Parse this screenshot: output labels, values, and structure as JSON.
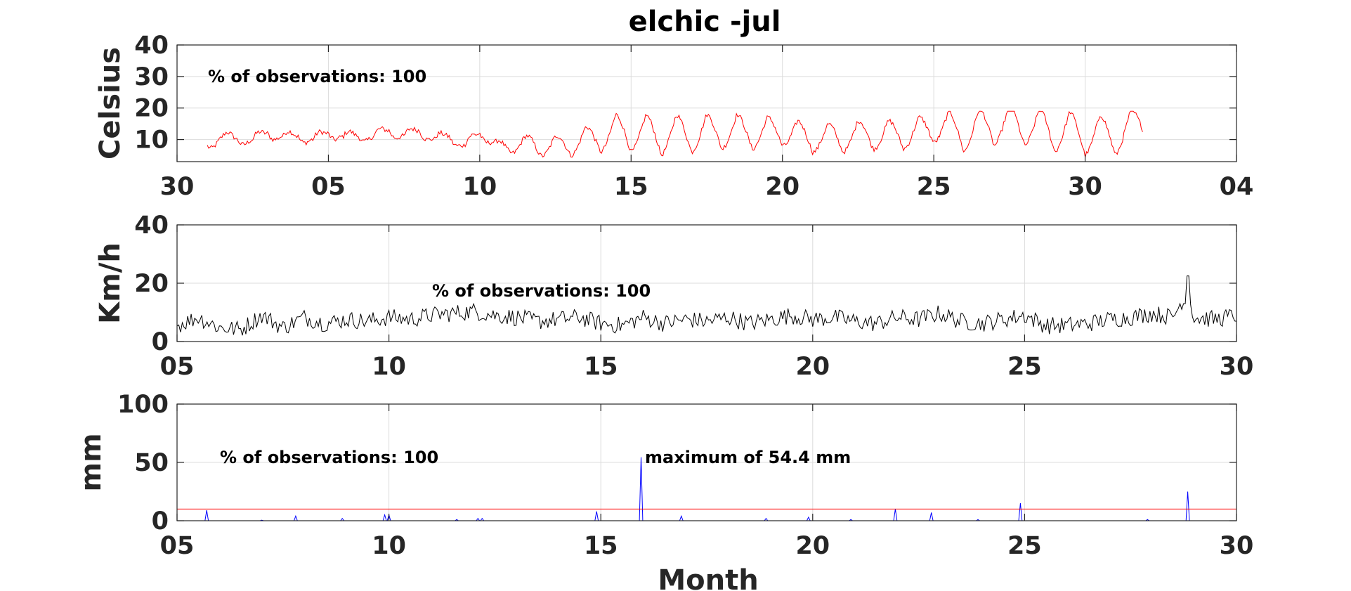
{
  "chart_data": [
    {
      "type": "line",
      "title": "elchic -jul",
      "ylabel": "Celsius",
      "xlabel": "",
      "annotation": "% of observations: 100",
      "ylim": [
        3,
        40
      ],
      "yticks": [
        "10",
        "20",
        "30",
        "40"
      ],
      "ytick_values": [
        10,
        20,
        30,
        40
      ],
      "xlim": [
        0,
        35
      ],
      "xticks": [
        "30",
        "05",
        "10",
        "15",
        "20",
        "25",
        "30",
        "04"
      ],
      "xtick_values": [
        0,
        5,
        10,
        15,
        20,
        25,
        30,
        35
      ],
      "grid": true,
      "series": [
        {
          "color": "#ff0000",
          "x_start": 1.0,
          "x_end": 31.9,
          "points": 700,
          "baseline": 10,
          "daily_amplitude": 5,
          "peak_hour_fraction": 0.6,
          "min": 4,
          "max": 19,
          "x": [
            1.0,
            1.5,
            2.0,
            2.5,
            3.0,
            3.5,
            4.0,
            4.5,
            5.0,
            5.5,
            6.0,
            6.5,
            7.0,
            7.5,
            8.0,
            8.5,
            9.0,
            9.5,
            10.0,
            10.5,
            11.0,
            11.5,
            12.0,
            12.5,
            13.0,
            13.5,
            14.0,
            14.5,
            15.0,
            15.5,
            16.0,
            16.5,
            17.0,
            17.5,
            18.0,
            18.5,
            19.0,
            19.5,
            20.0,
            20.5,
            21.0,
            21.5,
            22.0,
            22.5,
            23.0,
            23.5,
            24.0,
            24.5,
            25.0,
            25.5,
            26.0,
            26.5,
            27.0,
            27.5,
            28.0,
            28.5,
            29.0,
            29.5,
            30.0,
            30.5,
            31.0,
            31.5,
            31.9
          ],
          "y": [
            10,
            9,
            12,
            8,
            14,
            9,
            13,
            8,
            14,
            9,
            13,
            9,
            15,
            9,
            15,
            8,
            13,
            6,
            14,
            7,
            8,
            9,
            7,
            9,
            7,
            12,
            8,
            16,
            8,
            16,
            7,
            16,
            8,
            16,
            9,
            16,
            9,
            15,
            10,
            14,
            8,
            13,
            8,
            14,
            9,
            14,
            9,
            15,
            11,
            17,
            8,
            18,
            10,
            19,
            10,
            18,
            8,
            17,
            7,
            16,
            7,
            17,
            14
          ]
        }
      ]
    },
    {
      "type": "line",
      "title": "",
      "ylabel": "Km/h",
      "xlabel": "",
      "annotation": "% of observations: 100",
      "ylim": [
        0,
        40
      ],
      "yticks": [
        "0",
        "20",
        "40"
      ],
      "ytick_values": [
        0,
        20,
        40
      ],
      "xlim": [
        5,
        30
      ],
      "xticks": [
        "05",
        "10",
        "15",
        "20",
        "25",
        "30"
      ],
      "xtick_values": [
        5,
        10,
        15,
        20,
        25,
        30
      ],
      "grid": true,
      "series": [
        {
          "color": "#000000",
          "x_start": 5,
          "x_end": 30,
          "points": 600,
          "typical_range": [
            2,
            13
          ],
          "max": 22.5,
          "x_of_max": 28.85,
          "x": [
            5.0,
            5.5,
            6.0,
            6.5,
            7.0,
            7.5,
            8.0,
            8.5,
            9.0,
            9.5,
            10.0,
            10.5,
            11.0,
            11.5,
            12.0,
            12.5,
            13.0,
            13.5,
            14.0,
            14.5,
            15.0,
            15.5,
            16.0,
            16.5,
            17.0,
            17.5,
            18.0,
            18.5,
            19.0,
            19.5,
            20.0,
            20.5,
            21.0,
            21.5,
            22.0,
            22.5,
            23.0,
            23.5,
            24.0,
            24.5,
            25.0,
            25.5,
            26.0,
            26.5,
            27.0,
            27.5,
            28.0,
            28.5,
            28.85,
            29.0,
            29.5,
            30.0
          ],
          "y": [
            5,
            9,
            4,
            3,
            10,
            4,
            9,
            6,
            8,
            7,
            9,
            8,
            10,
            11,
            12,
            10,
            9,
            7,
            8,
            9,
            6,
            5,
            9,
            6,
            8,
            7,
            9,
            6,
            8,
            10,
            8,
            9,
            7,
            6,
            9,
            8,
            11,
            7,
            6,
            8,
            10,
            5,
            5,
            6,
            8,
            9,
            11,
            9,
            22.5,
            9,
            8,
            10
          ]
        }
      ]
    },
    {
      "type": "line",
      "title": "",
      "ylabel": "mm",
      "xlabel": "Month",
      "annotation": "% of observations: 100",
      "max_annotation": "maximum of 54.4 mm",
      "ylim": [
        0,
        100
      ],
      "yticks": [
        "0",
        "50",
        "100"
      ],
      "ytick_values": [
        0,
        50,
        100
      ],
      "xlim": [
        5,
        30
      ],
      "xticks": [
        "05",
        "10",
        "15",
        "20",
        "25",
        "30"
      ],
      "xtick_values": [
        5,
        10,
        15,
        20,
        25,
        30
      ],
      "grid": true,
      "reference_line": {
        "y": 10,
        "color": "#ff0000"
      },
      "series": [
        {
          "color": "#0000ff",
          "peaks": [
            {
              "x": 5.7,
              "y": 9
            },
            {
              "x": 7.0,
              "y": 0.5
            },
            {
              "x": 7.8,
              "y": 4
            },
            {
              "x": 8.9,
              "y": 2
            },
            {
              "x": 9.9,
              "y": 5
            },
            {
              "x": 10.0,
              "y": 5
            },
            {
              "x": 11.6,
              "y": 1
            },
            {
              "x": 12.1,
              "y": 2
            },
            {
              "x": 12.2,
              "y": 2
            },
            {
              "x": 14.9,
              "y": 8
            },
            {
              "x": 15.95,
              "y": 54.4
            },
            {
              "x": 16.9,
              "y": 4
            },
            {
              "x": 18.9,
              "y": 2
            },
            {
              "x": 19.9,
              "y": 3
            },
            {
              "x": 20.9,
              "y": 1
            },
            {
              "x": 21.95,
              "y": 10
            },
            {
              "x": 22.8,
              "y": 7
            },
            {
              "x": 23.9,
              "y": 1
            },
            {
              "x": 24.9,
              "y": 15
            },
            {
              "x": 27.9,
              "y": 1
            },
            {
              "x": 28.85,
              "y": 25
            }
          ]
        }
      ]
    }
  ]
}
